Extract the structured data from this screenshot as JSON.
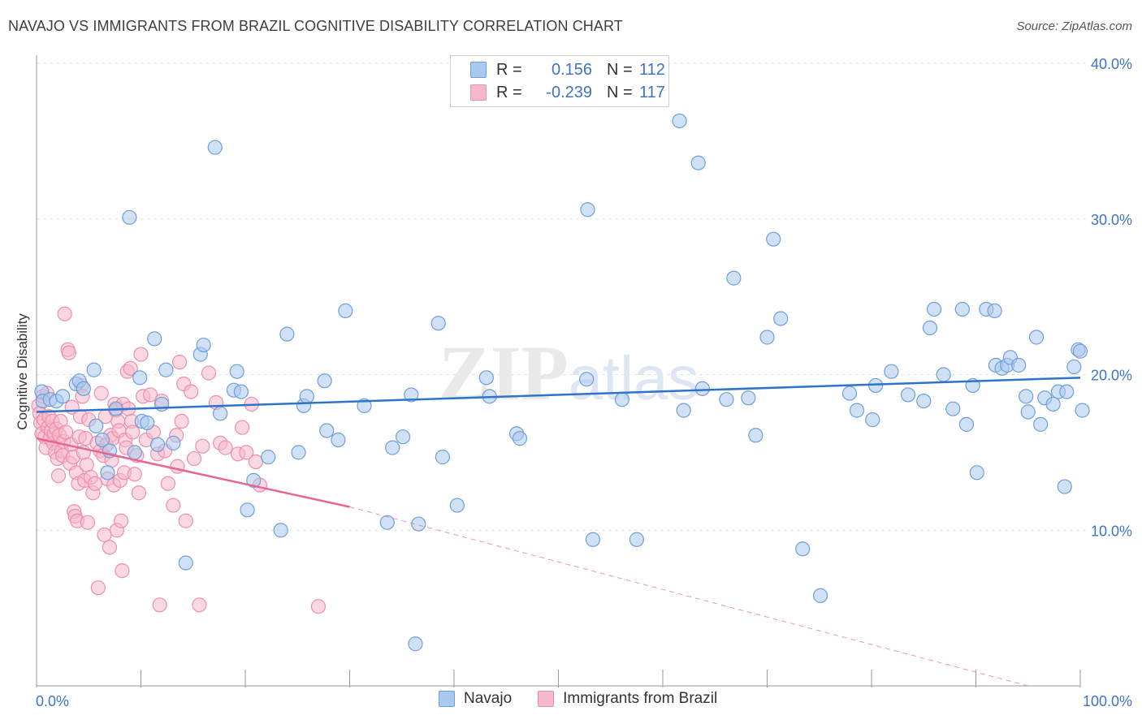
{
  "title": "NAVAJO VS IMMIGRANTS FROM BRAZIL COGNITIVE DISABILITY CORRELATION CHART",
  "source": "Source: ZipAtlas.com",
  "watermark": "ZIPatlas",
  "legend_top": {
    "rows": [
      {
        "r_label": "R =",
        "r_value": "0.156",
        "n_label": "N =",
        "n_value": "112"
      },
      {
        "r_label": "R =",
        "r_value": "-0.239",
        "n_label": "N =",
        "n_value": "117"
      }
    ]
  },
  "legend_bottom": {
    "items": [
      {
        "label": "Navajo"
      },
      {
        "label": "Immigrants from Brazil"
      }
    ]
  },
  "colors": {
    "navajo_fill": "#a9c9ef",
    "navajo_stroke": "#6f9fd8",
    "navajo_line": "#2f74c9",
    "brazil_fill": "#f6b8cb",
    "brazil_stroke": "#ec8fae",
    "brazil_line": "#e86592",
    "axis_text": "#3f74c4",
    "grid": "#e2e2e2"
  },
  "chart_data": {
    "type": "scatter",
    "title": "NAVAJO VS IMMIGRANTS FROM BRAZIL COGNITIVE DISABILITY CORRELATION CHART",
    "xlabel": "",
    "ylabel": "Cognitive Disability",
    "xlim": [
      0,
      100
    ],
    "ylim": [
      0,
      40
    ],
    "x_tick_labels": [
      "0.0%",
      "100.0%"
    ],
    "y_ticks": [
      10,
      20,
      30,
      40
    ],
    "y_tick_labels": [
      "10.0%",
      "20.0%",
      "30.0%",
      "40.0%"
    ],
    "grid": true,
    "legend_position": "top-center",
    "series": [
      {
        "name": "Navajo",
        "r": 0.156,
        "n": 112,
        "trend": {
          "x": [
            0,
            100
          ],
          "y": [
            17.6,
            19.8
          ],
          "style": "solid"
        },
        "points": [
          [
            0.5,
            18.9
          ],
          [
            0.6,
            18.3
          ],
          [
            1.3,
            18.4
          ],
          [
            1.9,
            18.3
          ],
          [
            2.5,
            18.6
          ],
          [
            3.8,
            19.4
          ],
          [
            4.1,
            19.6
          ],
          [
            4.5,
            19.1
          ],
          [
            5.5,
            20.3
          ],
          [
            5.7,
            16.7
          ],
          [
            6.3,
            15.8
          ],
          [
            6.8,
            13.7
          ],
          [
            7.0,
            15.1
          ],
          [
            7.6,
            17.8
          ],
          [
            8.9,
            30.1
          ],
          [
            9.4,
            15.0
          ],
          [
            9.9,
            19.8
          ],
          [
            10.1,
            17.0
          ],
          [
            10.6,
            16.9
          ],
          [
            11.3,
            22.3
          ],
          [
            11.6,
            15.5
          ],
          [
            12.0,
            18.1
          ],
          [
            12.4,
            20.3
          ],
          [
            13.1,
            15.6
          ],
          [
            14.3,
            7.9
          ],
          [
            15.7,
            21.3
          ],
          [
            16.0,
            21.9
          ],
          [
            17.1,
            34.6
          ],
          [
            17.6,
            17.5
          ],
          [
            18.9,
            19.0
          ],
          [
            19.2,
            20.2
          ],
          [
            19.6,
            18.9
          ],
          [
            20.2,
            11.3
          ],
          [
            20.8,
            13.2
          ],
          [
            22.2,
            14.7
          ],
          [
            23.4,
            10.0
          ],
          [
            24.0,
            22.6
          ],
          [
            25.1,
            15.0
          ],
          [
            25.6,
            18.0
          ],
          [
            25.9,
            18.6
          ],
          [
            27.6,
            19.6
          ],
          [
            27.8,
            16.4
          ],
          [
            28.9,
            15.8
          ],
          [
            29.6,
            24.1
          ],
          [
            31.4,
            18.0
          ],
          [
            33.6,
            10.5
          ],
          [
            34.1,
            15.3
          ],
          [
            35.1,
            16.0
          ],
          [
            35.9,
            18.7
          ],
          [
            36.3,
            2.7
          ],
          [
            36.6,
            10.4
          ],
          [
            38.5,
            23.3
          ],
          [
            38.9,
            14.7
          ],
          [
            40.3,
            11.6
          ],
          [
            43.1,
            19.8
          ],
          [
            43.4,
            18.6
          ],
          [
            46.0,
            16.2
          ],
          [
            46.3,
            15.9
          ],
          [
            52.8,
            30.6
          ],
          [
            52.7,
            19.7
          ],
          [
            53.3,
            9.4
          ],
          [
            56.1,
            18.4
          ],
          [
            57.5,
            9.4
          ],
          [
            61.6,
            36.3
          ],
          [
            62.0,
            17.7
          ],
          [
            63.4,
            33.6
          ],
          [
            63.8,
            19.1
          ],
          [
            66.1,
            18.4
          ],
          [
            66.8,
            26.2
          ],
          [
            68.2,
            18.5
          ],
          [
            68.9,
            16.1
          ],
          [
            70.0,
            22.4
          ],
          [
            70.6,
            28.7
          ],
          [
            71.3,
            23.6
          ],
          [
            73.4,
            8.8
          ],
          [
            75.1,
            5.8
          ],
          [
            77.9,
            18.8
          ],
          [
            78.6,
            17.7
          ],
          [
            80.1,
            17.1
          ],
          [
            80.4,
            19.3
          ],
          [
            81.9,
            20.2
          ],
          [
            83.5,
            18.7
          ],
          [
            85.0,
            18.3
          ],
          [
            85.6,
            23.0
          ],
          [
            86.0,
            24.2
          ],
          [
            86.9,
            20.0
          ],
          [
            87.8,
            17.8
          ],
          [
            88.7,
            24.2
          ],
          [
            89.1,
            16.8
          ],
          [
            89.7,
            19.3
          ],
          [
            90.1,
            13.7
          ],
          [
            91.0,
            24.2
          ],
          [
            91.8,
            24.1
          ],
          [
            91.9,
            20.6
          ],
          [
            92.5,
            20.4
          ],
          [
            93.0,
            20.6
          ],
          [
            93.3,
            21.1
          ],
          [
            94.1,
            20.6
          ],
          [
            94.8,
            18.6
          ],
          [
            95.0,
            17.6
          ],
          [
            95.8,
            22.4
          ],
          [
            96.2,
            16.8
          ],
          [
            96.6,
            18.5
          ],
          [
            97.4,
            18.1
          ],
          [
            97.9,
            18.9
          ],
          [
            98.5,
            12.8
          ],
          [
            98.7,
            18.9
          ],
          [
            99.4,
            20.5
          ],
          [
            99.8,
            21.6
          ],
          [
            100.0,
            21.5
          ],
          [
            100.2,
            17.7
          ]
        ]
      },
      {
        "name": "Immigrants from Brazil",
        "r": -0.239,
        "n": 117,
        "trend": {
          "x": [
            0,
            30
          ],
          "y": [
            15.9,
            11.5
          ],
          "style": "solid",
          "dashed_extension": {
            "x": [
              30,
              95
            ],
            "y": [
              11.5,
              0.0
            ]
          }
        },
        "points": [
          [
            0.2,
            18.0
          ],
          [
            0.3,
            17.5
          ],
          [
            0.4,
            16.9
          ],
          [
            0.5,
            16.2
          ],
          [
            0.6,
            18.6
          ],
          [
            0.7,
            17.1
          ],
          [
            0.8,
            16.0
          ],
          [
            0.9,
            15.3
          ],
          [
            1.0,
            18.8
          ],
          [
            1.1,
            16.6
          ],
          [
            1.2,
            17.3
          ],
          [
            1.3,
            15.9
          ],
          [
            1.4,
            16.4
          ],
          [
            1.5,
            17.0
          ],
          [
            1.6,
            15.6
          ],
          [
            1.7,
            16.2
          ],
          [
            1.8,
            15.0
          ],
          [
            1.9,
            16.5
          ],
          [
            2.0,
            14.6
          ],
          [
            2.1,
            13.5
          ],
          [
            2.2,
            16.1
          ],
          [
            2.3,
            17.0
          ],
          [
            2.4,
            15.1
          ],
          [
            2.5,
            14.8
          ],
          [
            2.6,
            15.7
          ],
          [
            2.7,
            23.9
          ],
          [
            2.8,
            16.3
          ],
          [
            3.0,
            21.6
          ],
          [
            3.1,
            21.4
          ],
          [
            3.2,
            14.3
          ],
          [
            3.3,
            15.5
          ],
          [
            3.4,
            17.9
          ],
          [
            3.5,
            14.7
          ],
          [
            3.6,
            11.2
          ],
          [
            3.7,
            10.9
          ],
          [
            3.8,
            13.7
          ],
          [
            3.9,
            10.6
          ],
          [
            4.0,
            13.0
          ],
          [
            4.1,
            16.0
          ],
          [
            4.2,
            17.3
          ],
          [
            4.3,
            19.3
          ],
          [
            4.4,
            18.6
          ],
          [
            4.5,
            15.0
          ],
          [
            4.6,
            13.2
          ],
          [
            4.7,
            15.9
          ],
          [
            4.8,
            14.2
          ],
          [
            4.9,
            10.5
          ],
          [
            5.0,
            17.1
          ],
          [
            5.2,
            13.4
          ],
          [
            5.4,
            12.4
          ],
          [
            5.6,
            13.0
          ],
          [
            5.8,
            15.6
          ],
          [
            5.9,
            6.3
          ],
          [
            6.1,
            15.1
          ],
          [
            6.2,
            18.8
          ],
          [
            6.4,
            14.8
          ],
          [
            6.5,
            9.7
          ],
          [
            6.6,
            17.3
          ],
          [
            6.7,
            15.5
          ],
          [
            6.8,
            13.3
          ],
          [
            7.0,
            8.9
          ],
          [
            7.1,
            16.1
          ],
          [
            7.2,
            14.5
          ],
          [
            7.3,
            15.9
          ],
          [
            7.4,
            12.9
          ],
          [
            7.5,
            18.1
          ],
          [
            7.6,
            17.7
          ],
          [
            7.7,
            10.0
          ],
          [
            7.8,
            17.0
          ],
          [
            7.9,
            16.4
          ],
          [
            8.0,
            13.2
          ],
          [
            8.1,
            10.6
          ],
          [
            8.2,
            7.4
          ],
          [
            8.3,
            18.1
          ],
          [
            8.4,
            13.7
          ],
          [
            8.5,
            15.8
          ],
          [
            8.6,
            15.3
          ],
          [
            8.7,
            20.2
          ],
          [
            8.8,
            17.8
          ],
          [
            9.0,
            20.4
          ],
          [
            9.1,
            17.0
          ],
          [
            9.2,
            16.3
          ],
          [
            9.4,
            13.6
          ],
          [
            9.6,
            14.8
          ],
          [
            9.8,
            12.4
          ],
          [
            10.0,
            21.3
          ],
          [
            10.2,
            18.6
          ],
          [
            10.5,
            15.8
          ],
          [
            10.9,
            18.7
          ],
          [
            11.2,
            16.3
          ],
          [
            11.6,
            14.9
          ],
          [
            11.8,
            5.2
          ],
          [
            12.0,
            18.3
          ],
          [
            12.3,
            15.1
          ],
          [
            12.6,
            13.0
          ],
          [
            13.1,
            11.6
          ],
          [
            13.4,
            16.1
          ],
          [
            13.7,
            20.8
          ],
          [
            13.9,
            17.0
          ],
          [
            14.1,
            19.4
          ],
          [
            14.3,
            10.6
          ],
          [
            14.8,
            18.9
          ],
          [
            15.1,
            14.6
          ],
          [
            15.6,
            5.2
          ],
          [
            15.9,
            15.4
          ],
          [
            16.5,
            20.1
          ],
          [
            17.2,
            18.2
          ],
          [
            17.6,
            15.6
          ],
          [
            18.1,
            15.3
          ],
          [
            19.3,
            14.9
          ],
          [
            19.7,
            16.6
          ],
          [
            20.1,
            15.0
          ],
          [
            20.6,
            18.1
          ],
          [
            21.0,
            14.4
          ],
          [
            21.4,
            12.9
          ],
          [
            27.0,
            5.1
          ],
          [
            13.5,
            14.1
          ]
        ]
      }
    ]
  }
}
